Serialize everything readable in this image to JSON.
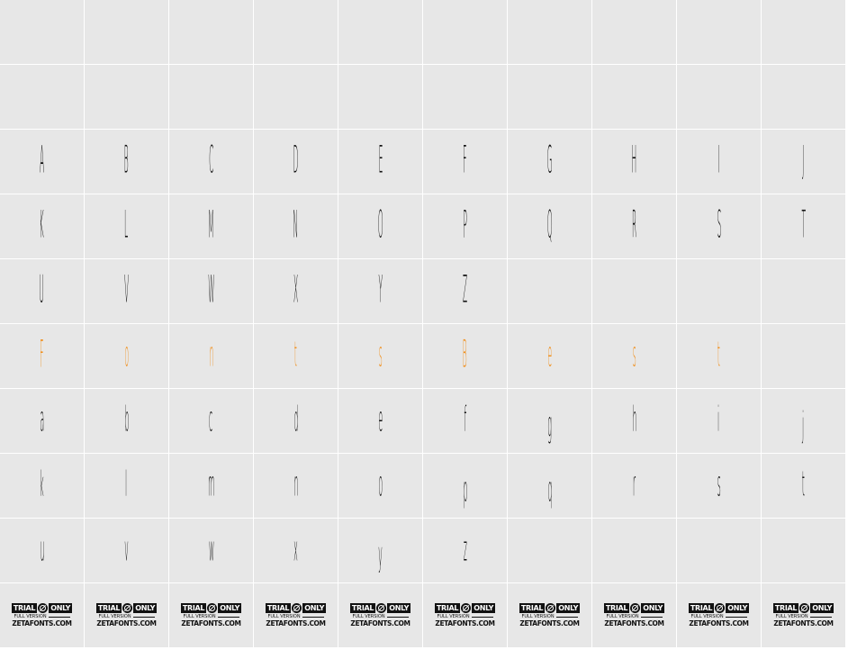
{
  "colors": {
    "cell_background": "#e7e7e7",
    "grid_line": "#ffffff",
    "glyph": "#111111",
    "highlight": "#f0901e"
  },
  "rows": [
    [],
    [],
    [
      "A",
      "B",
      "C",
      "D",
      "E",
      "F",
      "G",
      "H",
      "I",
      "J"
    ],
    [
      "K",
      "L",
      "M",
      "N",
      "O",
      "P",
      "Q",
      "R",
      "S",
      "T"
    ],
    [
      "U",
      "V",
      "W",
      "X",
      "Y",
      "Z"
    ],
    [
      "F",
      "o",
      "n",
      "t",
      "s",
      "B",
      "e",
      "s",
      "t"
    ],
    [
      "a",
      "b",
      "c",
      "d",
      "e",
      "f",
      "g",
      "h",
      "i",
      "j"
    ],
    [
      "k",
      "l",
      "m",
      "n",
      "o",
      "p",
      "q",
      "r",
      "s",
      "t"
    ],
    [
      "u",
      "v",
      "w",
      "x",
      "y",
      "z"
    ]
  ],
  "highlight_row": 5,
  "trial_badge": {
    "left": "TRIAL",
    "right": "ONLY",
    "icon": "no-icon",
    "middle": "FULL VERSION",
    "bottom": "ZETAFONTS.COM",
    "count": 10
  }
}
